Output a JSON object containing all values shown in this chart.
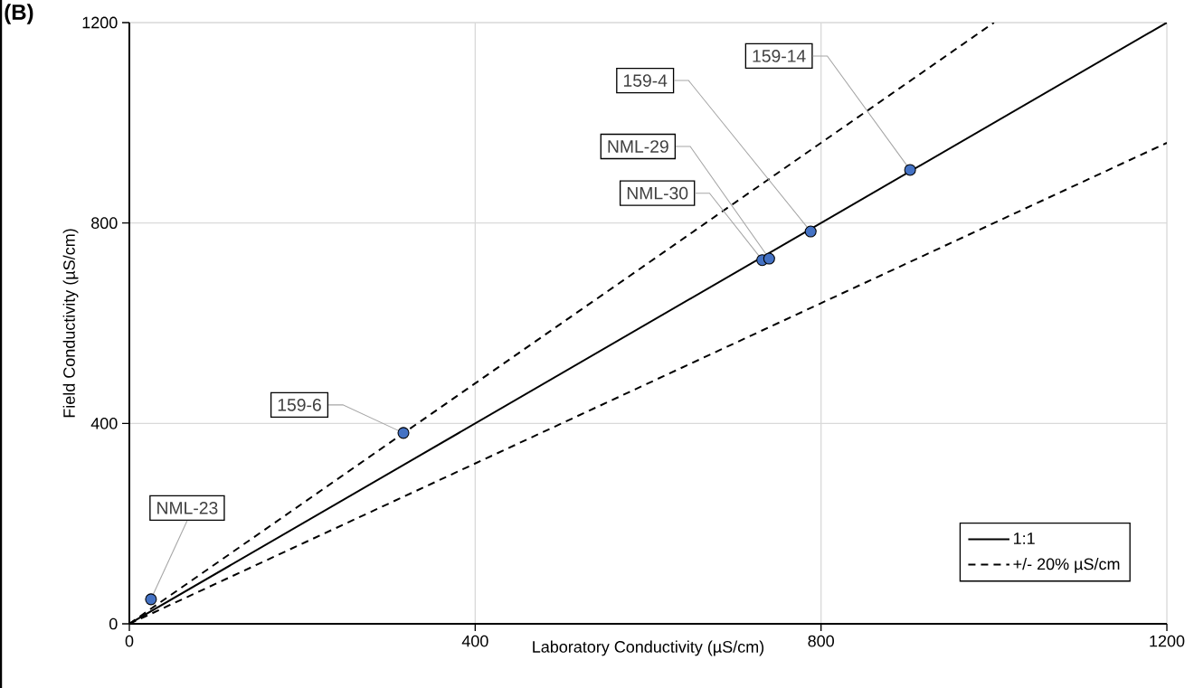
{
  "chart_data": {
    "type": "scatter",
    "xlabel": "Laboratory Conductivity (µS/cm)",
    "ylabel": "Field Conductivity (µS/cm)",
    "xlim": [
      0,
      1200
    ],
    "ylim": [
      0,
      1200
    ],
    "xticks": [
      0,
      400,
      800,
      1200
    ],
    "yticks": [
      0,
      400,
      800,
      1200
    ],
    "grid": true,
    "legend": "bottom right",
    "series": [
      {
        "name": "1:1",
        "type": "line",
        "color": "#000000",
        "line_style": "solid",
        "x": [
          0,
          1200
        ],
        "values": [
          0,
          1200
        ]
      },
      {
        "name": "+/- 20% µS/cm",
        "type": "line",
        "color": "#000000",
        "line_style": "dashed",
        "x": [
          0,
          1000
        ],
        "values": [
          0,
          1200
        ]
      },
      {
        "type": "line",
        "color": "#000000",
        "line_style": "dashed",
        "x": [
          0,
          1200
        ],
        "values": [
          0,
          960
        ]
      },
      {
        "color": "#4472c4",
        "marker": "circle",
        "x": [
          25,
          317,
          732,
          740,
          788,
          903
        ],
        "values": [
          49,
          381,
          726,
          729,
          783,
          906
        ]
      }
    ],
    "annotations": [
      "(B)",
      {
        "text": "NML-23",
        "x": 25,
        "y": 49
      },
      {
        "text": "159-6",
        "x": 317,
        "y": 381
      },
      {
        "text": "NML-30",
        "x": 732,
        "y": 726
      },
      {
        "text": "NML-29",
        "x": 740,
        "y": 729
      },
      {
        "text": "159-4",
        "x": 788,
        "y": 783
      },
      {
        "text": "159-14",
        "x": 903,
        "y": 906
      }
    ]
  }
}
